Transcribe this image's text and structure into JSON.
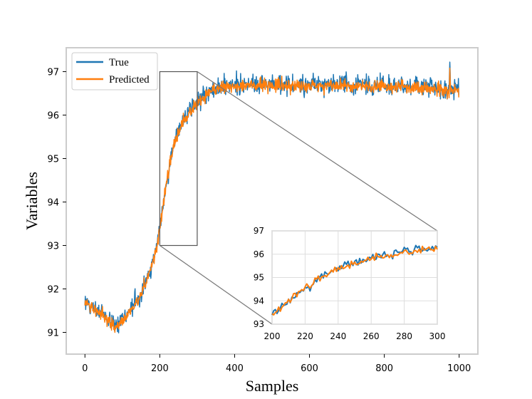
{
  "chart_data": {
    "type": "line",
    "xlabel": "Samples",
    "ylabel": "Variables",
    "xlim": [
      -50,
      1050
    ],
    "ylim": [
      90.5,
      97.55
    ],
    "xticks": [
      0,
      200,
      400,
      600,
      800,
      1000
    ],
    "yticks": [
      91,
      92,
      93,
      94,
      95,
      96,
      97
    ],
    "legend_position": "top-left",
    "series": [
      {
        "name": "True",
        "color": "#1f77b4"
      },
      {
        "name": "Predicted",
        "color": "#ff7f0e"
      }
    ],
    "trend": {
      "x": [
        0,
        20,
        40,
        60,
        80,
        100,
        120,
        140,
        160,
        180,
        190,
        200,
        210,
        220,
        230,
        240,
        250,
        260,
        280,
        300,
        320,
        340,
        360,
        400,
        500,
        600,
        700,
        800,
        900,
        1000
      ],
      "y": [
        91.7,
        91.6,
        91.45,
        91.3,
        91.2,
        91.3,
        91.5,
        91.75,
        92.1,
        92.6,
        92.9,
        93.4,
        94.05,
        94.6,
        95.05,
        95.4,
        95.65,
        95.85,
        96.1,
        96.3,
        96.45,
        96.58,
        96.65,
        96.7,
        96.72,
        96.7,
        96.7,
        96.68,
        96.65,
        96.6
      ]
    },
    "noise_amplitude": {
      "True": 0.18,
      "Predicted": 0.13
    },
    "spike": {
      "x": 975,
      "True": 97.22,
      "Predicted": 97.08
    },
    "zoom_box": {
      "x": [
        200,
        300
      ],
      "y": [
        93,
        97
      ]
    },
    "inset": {
      "xlim": [
        200,
        300
      ],
      "ylim": [
        93,
        97
      ],
      "xticks": [
        200,
        220,
        240,
        260,
        280,
        300
      ],
      "yticks": [
        93,
        94,
        95,
        96,
        97
      ],
      "grid": true
    }
  }
}
